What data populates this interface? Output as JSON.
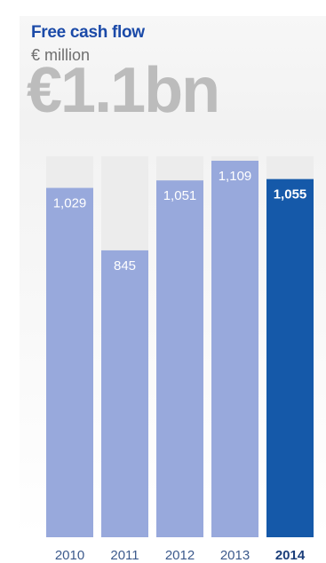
{
  "header": {
    "title": "Free cash flow",
    "unit": "€ million",
    "headline": "€1.1bn"
  },
  "colors": {
    "bar": "#98a9dc",
    "highlight_bar": "#1559a9",
    "track": "#ececec",
    "label_light": "#ffffff",
    "axis_text": "#3c5a8c"
  },
  "chart_data": {
    "type": "bar",
    "title": "Free cash flow",
    "ylabel": "€ million",
    "categories": [
      "2010",
      "2011",
      "2012",
      "2013",
      "2014"
    ],
    "values": [
      1029,
      845,
      1051,
      1109,
      1055
    ],
    "value_labels": [
      "1,029",
      "845",
      "1,051",
      "1,109",
      "1,055"
    ],
    "highlight": "2014",
    "ylim": [
      0,
      1109
    ],
    "grid": false,
    "legend": "none"
  }
}
